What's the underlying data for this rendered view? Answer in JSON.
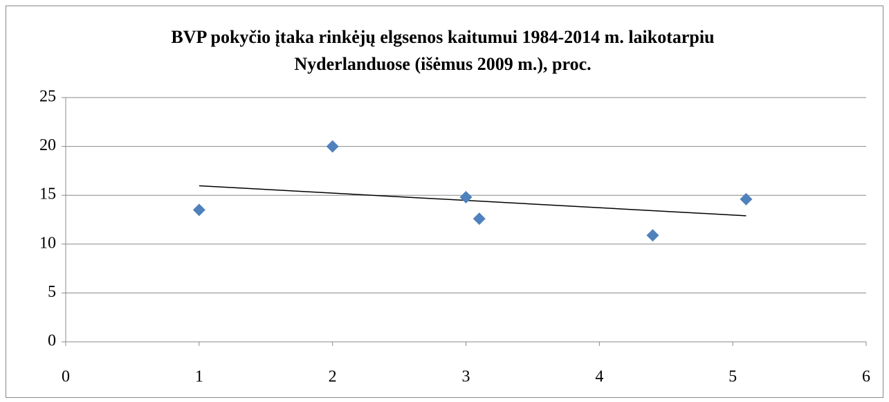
{
  "chart_data": {
    "type": "scatter",
    "title": [
      "BVP pokyčio įtaka rinkėjų elgsenos kaitumui 1984-2014 m. laikotarpiu",
      "Nyderlanduose (išėmus 2009 m.), proc."
    ],
    "series": [
      {
        "color": "#4f81bd",
        "x": [
          1,
          2,
          3,
          3.1,
          4.4,
          5.1
        ],
        "values": [
          13.5,
          20,
          14.8,
          12.6,
          10.9,
          14.6
        ]
      }
    ],
    "trendline": {
      "color": "#000000",
      "x": [
        1,
        5.1
      ],
      "values": [
        15.97,
        12.9
      ]
    },
    "xlim": [
      0,
      6
    ],
    "xticks": [
      0,
      1,
      2,
      3,
      4,
      5,
      6
    ],
    "ylim": [
      0,
      25
    ],
    "yticks": [
      0,
      5,
      10,
      15,
      20,
      25
    ],
    "grid": true
  }
}
